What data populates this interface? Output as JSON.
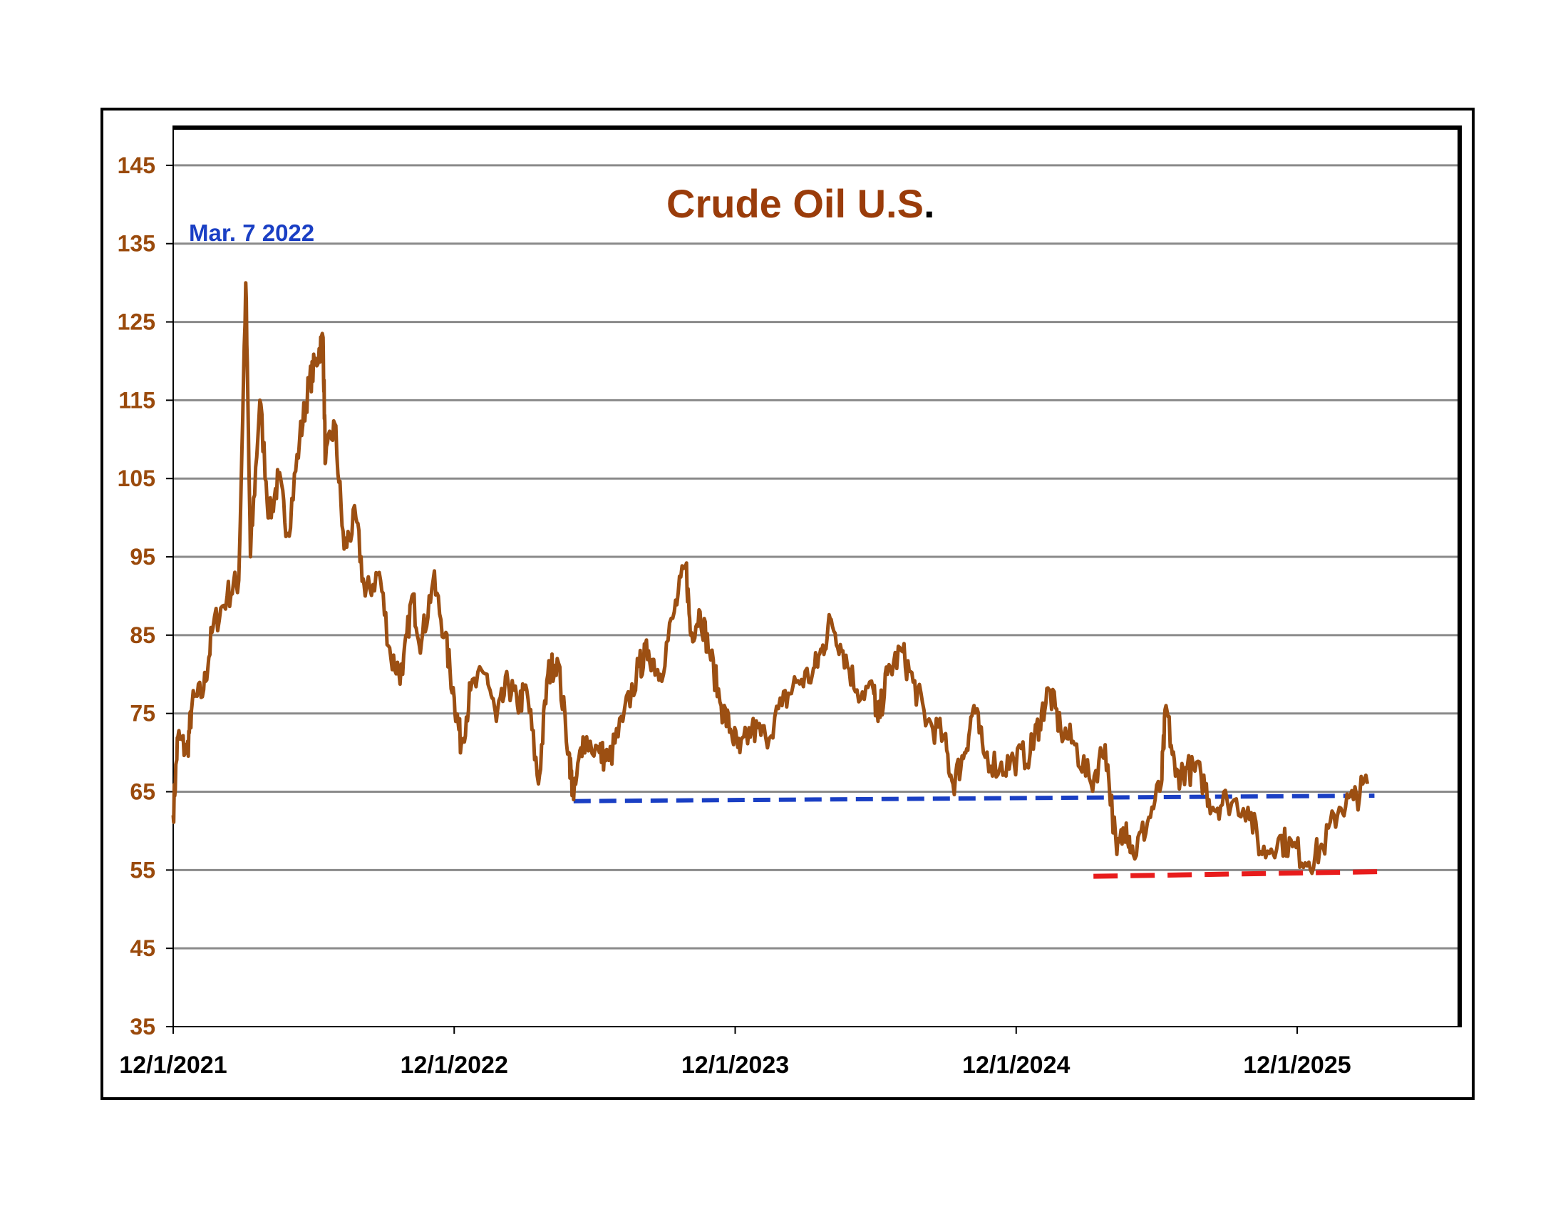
{
  "chart_data": {
    "type": "line",
    "title": "Crude Oil U.S",
    "title_suffix": ".",
    "annotation": "Mar. 7 2022",
    "x_unit": "months since 12/1/2021",
    "xlim": [
      0,
      55
    ],
    "ylim": [
      35,
      150
    ],
    "grid": true,
    "y_ticks": [
      35,
      45,
      55,
      65,
      75,
      85,
      95,
      105,
      115,
      125,
      135,
      145
    ],
    "x_ticks": [
      {
        "value": 0,
        "label": "12/1/2021"
      },
      {
        "value": 12,
        "label": "12/1/2022"
      },
      {
        "value": 24,
        "label": "12/1/2023"
      },
      {
        "value": 36,
        "label": "12/1/2024"
      },
      {
        "value": 48,
        "label": "12/1/2025"
      }
    ],
    "series": [
      {
        "name": "Crude Oil U.S.",
        "color": "#9c4f12",
        "x": [
          0,
          0.2,
          0.6,
          0.8,
          1.3,
          1.7,
          2.3,
          2.8,
          3.1,
          3.3,
          3.7,
          4.1,
          4.5,
          4.9,
          5.4,
          5.8,
          6.1,
          6.4,
          6.5,
          6.9,
          7.3,
          7.8,
          8.2,
          8.8,
          9.3,
          9.8,
          10.2,
          10.6,
          11.1,
          11.6,
          12.0,
          12.3,
          12.7,
          13.4,
          13.8,
          14.3,
          14.7,
          15.1,
          15.6,
          16.0,
          16.4,
          16.9,
          17.1,
          17.5,
          18.2,
          18.6,
          19.2,
          19.9,
          20.3,
          20.8,
          21.4,
          21.9,
          22.1,
          22.5,
          22.9,
          23.4,
          23.8,
          24.2,
          24.7,
          25.3,
          26.0,
          26.6,
          27.3,
          27.7,
          28.1,
          28.6,
          29.2,
          29.9,
          30.1,
          30.5,
          31.1,
          31.6,
          32.2,
          32.9,
          33.3,
          33.8,
          34.2,
          34.6,
          35.3,
          35.9,
          36.6,
          37.0,
          37.4,
          37.9,
          38.5,
          39.2,
          39.8,
          40.3,
          40.7,
          41.0,
          41.6,
          42.2,
          42.4,
          42.8,
          43.3,
          43.9,
          44.4,
          45.0,
          45.9,
          46.5,
          47.2,
          47.8,
          48.5,
          49.1,
          49.8,
          50.4,
          51.0
        ],
        "y": [
          62,
          72,
          70,
          76,
          78,
          86,
          90,
          92,
          130,
          95,
          115,
          100,
          105,
          98,
          110,
          117,
          120,
          123,
          107,
          112,
          96,
          100,
          90,
          93,
          82,
          80,
          90,
          84,
          92,
          85,
          77,
          71,
          78,
          80,
          74,
          79,
          76,
          78,
          66,
          80,
          82,
          70,
          64,
          72,
          70,
          69,
          74,
          81,
          83,
          80,
          88,
          94,
          85,
          88,
          83,
          76,
          73,
          70,
          73,
          72,
          76,
          79,
          80,
          83,
          87,
          83,
          78,
          78,
          74,
          80,
          83,
          79,
          74,
          72,
          66,
          70,
          76,
          70,
          68,
          69,
          70,
          74,
          78,
          73,
          71,
          66,
          71,
          57,
          61,
          57,
          61,
          66,
          76,
          67,
          68,
          67,
          63,
          64,
          63,
          57,
          59,
          58,
          56,
          58,
          63,
          64,
          66
        ]
      }
    ],
    "trendlines": [
      {
        "name": "resistance",
        "color": "#1a3fc4",
        "x": [
          17.1,
          51.3
        ],
        "y": [
          63.8,
          64.5
        ]
      },
      {
        "name": "support",
        "color": "#e81c1c",
        "x": [
          39.3,
          51.6
        ],
        "y": [
          54.2,
          54.8
        ]
      }
    ]
  }
}
